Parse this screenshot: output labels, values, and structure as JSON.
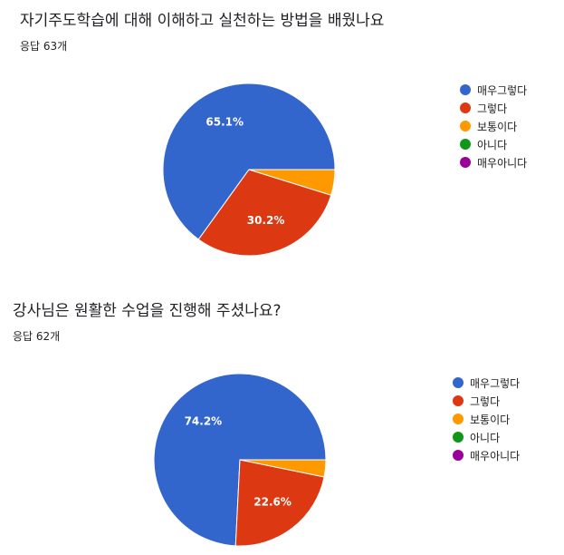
{
  "charts": [
    {
      "title": "자기주도학습에 대해 이해하고 실천하는 방법을 배웠나요",
      "responses": "응답 63개"
    },
    {
      "title": "강사님은 원활한 수업을 진행해 주셨나요?",
      "responses": "응답 62개"
    }
  ],
  "chart_data": [
    {
      "type": "pie",
      "title": "자기주도학습에 대해 이해하고 실천하는 방법을 배웠나요",
      "categories": [
        "매우그렇다",
        "그렇다",
        "보통이다",
        "아니다",
        "매우아니다"
      ],
      "values": [
        65.1,
        30.2,
        4.8,
        0,
        0
      ],
      "data_labels": [
        "65.1%",
        "30.2%",
        "",
        "",
        ""
      ],
      "colors": [
        "#3366cc",
        "#dc3912",
        "#ff9900",
        "#109618",
        "#990099"
      ],
      "legend": "right"
    },
    {
      "type": "pie",
      "title": "강사님은 원활한 수업을 진행해 주셨나요?",
      "categories": [
        "매우그렇다",
        "그렇다",
        "보통이다",
        "아니다",
        "매우아니다"
      ],
      "values": [
        74.2,
        22.6,
        3.2,
        0,
        0
      ],
      "data_labels": [
        "74.2%",
        "22.6%",
        "",
        "",
        ""
      ],
      "colors": [
        "#3366cc",
        "#dc3912",
        "#ff9900",
        "#109618",
        "#990099"
      ],
      "legend": "right"
    }
  ]
}
